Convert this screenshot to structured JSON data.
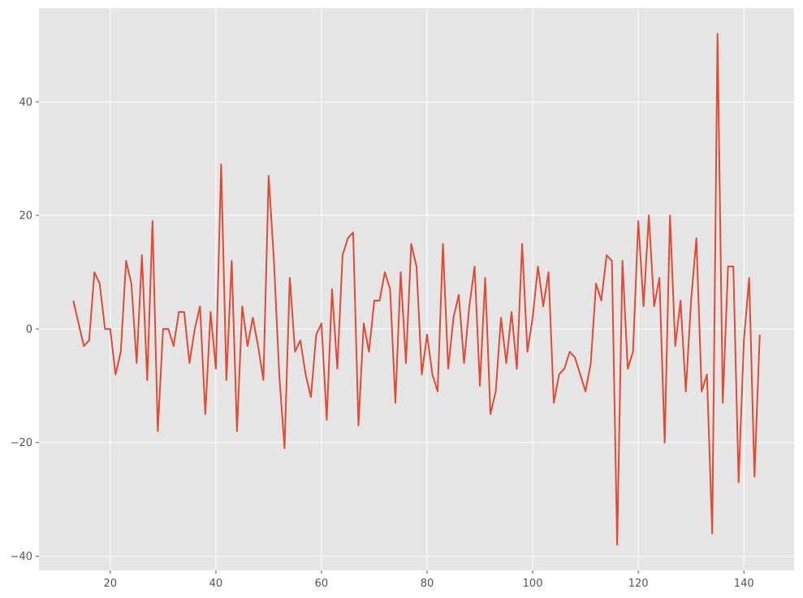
{
  "chart_data": {
    "type": "line",
    "title": "",
    "xlabel": "",
    "ylabel": "",
    "xlim": [
      6.5,
      149.5
    ],
    "ylim": [
      -42.5,
      56.5
    ],
    "grid": true,
    "xticks": [
      20,
      40,
      60,
      80,
      100,
      120,
      140
    ],
    "yticks": [
      -40,
      -20,
      0,
      20,
      40
    ],
    "xtick_labels": [
      "20",
      "40",
      "60",
      "80",
      "100",
      "120",
      "140"
    ],
    "ytick_labels": [
      "−40",
      "−20",
      "0",
      "20",
      "40"
    ],
    "colors": {
      "line": "#E24A33",
      "plot_bg": "#E5E5E5",
      "grid": "#FFFFFF",
      "tick_text": "#555555"
    },
    "series": [
      {
        "x": [
          13,
          14,
          15,
          16,
          17,
          18,
          19,
          20,
          21,
          22,
          23,
          24,
          25,
          26,
          27,
          28,
          29,
          30,
          31,
          32,
          33,
          34,
          35,
          36,
          37,
          38,
          39,
          40,
          41,
          42,
          43,
          44,
          45,
          46,
          47,
          48,
          49,
          50,
          51,
          52,
          53,
          54,
          55,
          56,
          57,
          58,
          59,
          60,
          61,
          62,
          63,
          64,
          65,
          66,
          67,
          68,
          69,
          70,
          71,
          72,
          73,
          74,
          75,
          76,
          77,
          78,
          79,
          80,
          81,
          82,
          83,
          84,
          85,
          86,
          87,
          88,
          89,
          90,
          91,
          92,
          93,
          94,
          95,
          96,
          97,
          98,
          99,
          100,
          101,
          102,
          103,
          104,
          105,
          106,
          107,
          108,
          109,
          110,
          111,
          112,
          113,
          114,
          115,
          116,
          117,
          118,
          119,
          120,
          121,
          122,
          123,
          124,
          125,
          126,
          127,
          128,
          129,
          130,
          131,
          132,
          133,
          134,
          135,
          136,
          137,
          138,
          139,
          140,
          141,
          142,
          143
        ],
        "values": [
          5,
          1,
          -3,
          -2,
          10,
          8,
          0,
          0,
          -8,
          -4,
          12,
          8,
          -6,
          13,
          -9,
          19,
          -18,
          0,
          0,
          -3,
          3,
          3,
          -6,
          0,
          4,
          -15,
          3,
          -7,
          29,
          -9,
          12,
          -18,
          4,
          -3,
          2,
          -3,
          -9,
          27,
          12,
          -8,
          -21,
          9,
          -4,
          -2,
          -8,
          -12,
          -1,
          1,
          -16,
          7,
          -7,
          13,
          16,
          17,
          -17,
          1,
          -4,
          5,
          5,
          10,
          7,
          -13,
          10,
          -6,
          15,
          11,
          -8,
          -1,
          -8,
          -11,
          15,
          -7,
          2,
          6,
          -6,
          4,
          11,
          -10,
          9,
          -15,
          -11,
          2,
          -6,
          3,
          -7,
          15,
          -4,
          2,
          11,
          4,
          10,
          -13,
          -8,
          -7,
          -4,
          -5,
          -8,
          -11,
          -6,
          8,
          5,
          13,
          12,
          -38,
          12,
          -7,
          -4,
          19,
          4,
          20,
          4,
          9,
          -20,
          20,
          -3,
          5,
          -11,
          5,
          16,
          -11,
          -8,
          -36,
          52,
          -13,
          11,
          11,
          -27,
          -2,
          9,
          -26,
          -1
        ]
      }
    ]
  }
}
